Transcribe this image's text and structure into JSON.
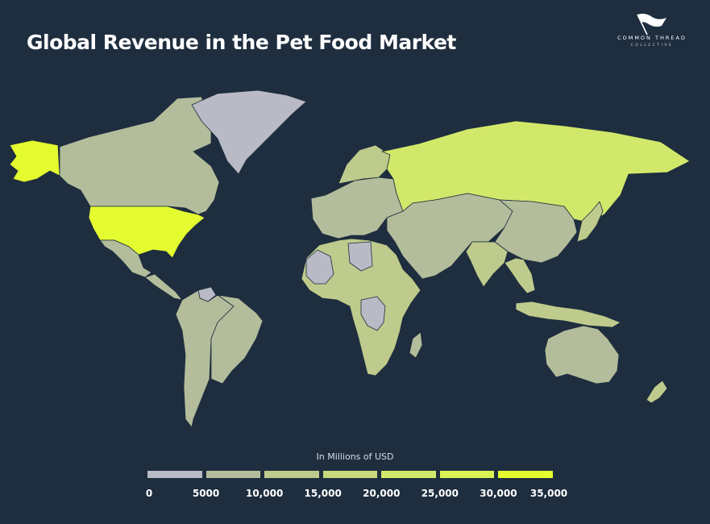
{
  "title": "Global Revenue in the Pet Food Market",
  "logo": {
    "line1": "COMMON THREAD",
    "line2": "COLLECTIVE",
    "icon": "flag-icon"
  },
  "colors": {
    "background": "#1e2e3f",
    "ocean": "#1e2e3f",
    "border": "#1e2e3f",
    "scale": [
      "#b9bac6",
      "#b3bd9b",
      "#bfcb8c",
      "#c9d97c",
      "#d2e86a",
      "#dbf253",
      "#e4fb2f"
    ]
  },
  "legend": {
    "title": "In Millions of USD",
    "ticks": [
      "0",
      "5000",
      "10,000",
      "15,000",
      "20,000",
      "25,000",
      "30,000",
      "35,000"
    ]
  },
  "map": {
    "projection": "equirectangular-world",
    "regions": [
      {
        "name": "Alaska",
        "bin": 6
      },
      {
        "name": "Canada",
        "bin": 1
      },
      {
        "name": "United States",
        "bin": 6
      },
      {
        "name": "Greenland",
        "bin": 0
      },
      {
        "name": "Mexico",
        "bin": 1
      },
      {
        "name": "Central America",
        "bin": 1
      },
      {
        "name": "Venezuela",
        "bin": 0
      },
      {
        "name": "South America",
        "bin": 1
      },
      {
        "name": "Brazil",
        "bin": 1
      },
      {
        "name": "Europe",
        "bin": 1
      },
      {
        "name": "Scandinavia",
        "bin": 2
      },
      {
        "name": "Russia",
        "bin": 4
      },
      {
        "name": "Middle East and Central Asia",
        "bin": 1
      },
      {
        "name": "China",
        "bin": 1
      },
      {
        "name": "India",
        "bin": 2
      },
      {
        "name": "Southeast Asia",
        "bin": 2
      },
      {
        "name": "Japan",
        "bin": 2
      },
      {
        "name": "Africa",
        "bin": 2
      },
      {
        "name": "West Africa",
        "bin": 0
      },
      {
        "name": "Libya",
        "bin": 0
      },
      {
        "name": "DR Congo",
        "bin": 0
      },
      {
        "name": "Madagascar",
        "bin": 1
      },
      {
        "name": "Australia",
        "bin": 1
      },
      {
        "name": "New Zealand",
        "bin": 2
      },
      {
        "name": "Indonesia",
        "bin": 2
      }
    ]
  }
}
